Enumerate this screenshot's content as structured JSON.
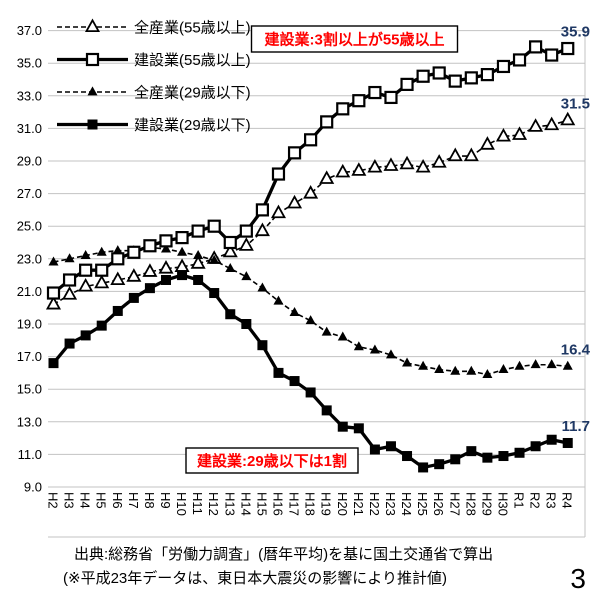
{
  "page_number": "3",
  "source": {
    "line1": "出典:総務省「労働力調査」(暦年平均)を基に国土交通省で算出",
    "line2": "(※平成23年データは、東日本大震災の影響により推計値)"
  },
  "chart_data": {
    "type": "line",
    "title": "",
    "xlabel": "",
    "ylabel": "",
    "ylim": [
      9.0,
      37.0
    ],
    "ytick_step": 2.0,
    "grid": true,
    "legend_position": "top-left",
    "x_categories": [
      "H2",
      "H3",
      "H4",
      "H5",
      "H6",
      "H7",
      "H8",
      "H9",
      "H10",
      "H11",
      "H12",
      "H13",
      "H14",
      "H15",
      "H16",
      "H17",
      "H18",
      "H19",
      "H20",
      "H21",
      "H22",
      "H23",
      "H24",
      "H25",
      "H26",
      "H27",
      "H28",
      "H29",
      "H30",
      "R1",
      "R2",
      "R3",
      "R4"
    ],
    "series": [
      {
        "name": "全産業(55歳以上)",
        "marker": "open-triangle",
        "line": "dashed",
        "end_label": "31.5",
        "values": [
          20.2,
          20.8,
          21.3,
          21.5,
          21.7,
          21.9,
          22.2,
          22.4,
          22.5,
          22.7,
          23.0,
          23.4,
          23.8,
          24.7,
          25.8,
          26.4,
          27.0,
          27.9,
          28.3,
          28.4,
          28.6,
          28.7,
          28.8,
          28.6,
          28.9,
          29.3,
          29.3,
          30.0,
          30.5,
          30.6,
          31.1,
          31.2,
          31.5
        ]
      },
      {
        "name": "建設業(55歳以上)",
        "marker": "open-square",
        "line": "solid",
        "end_label": "35.9",
        "values": [
          20.9,
          21.7,
          22.3,
          22.3,
          23.0,
          23.4,
          23.8,
          24.1,
          24.3,
          24.7,
          25.0,
          24.0,
          24.7,
          26.0,
          28.2,
          29.5,
          30.3,
          31.4,
          32.2,
          32.7,
          33.2,
          32.9,
          33.7,
          34.2,
          34.4,
          33.9,
          34.1,
          34.3,
          34.8,
          35.2,
          36.0,
          35.5,
          35.9
        ]
      },
      {
        "name": "全産業(29歳以下)",
        "marker": "filled-triangle",
        "line": "dashed",
        "end_label": "16.4",
        "values": [
          22.8,
          23.0,
          23.2,
          23.4,
          23.5,
          23.5,
          23.7,
          23.6,
          23.4,
          23.2,
          22.9,
          22.4,
          21.9,
          21.2,
          20.4,
          19.7,
          19.2,
          18.5,
          18.2,
          17.6,
          17.4,
          17.1,
          16.6,
          16.4,
          16.2,
          16.1,
          16.1,
          15.9,
          16.2,
          16.4,
          16.5,
          16.5,
          16.4
        ]
      },
      {
        "name": "建設業(29歳以下)",
        "marker": "filled-square",
        "line": "solid",
        "end_label": "11.7",
        "values": [
          16.6,
          17.8,
          18.3,
          18.9,
          19.8,
          20.6,
          21.2,
          21.7,
          22.0,
          21.7,
          20.9,
          19.6,
          19.0,
          17.7,
          16.0,
          15.5,
          14.8,
          13.7,
          12.7,
          12.6,
          11.3,
          11.5,
          10.9,
          10.2,
          10.4,
          10.7,
          11.2,
          10.8,
          10.9,
          11.1,
          11.5,
          11.9,
          11.7
        ]
      }
    ],
    "annotations": [
      {
        "text": "建設業:3割以上が55歳以上",
        "color": "#ff0000",
        "position": "top-center"
      },
      {
        "text": "建設業:29歳以下は1割",
        "color": "#ff0000",
        "position": "bottom-left"
      }
    ],
    "colors": {
      "series": "#000000",
      "end_labels": "#1f3864",
      "annotation_text": "#ff0000",
      "grid": "#c3c3c3"
    }
  }
}
